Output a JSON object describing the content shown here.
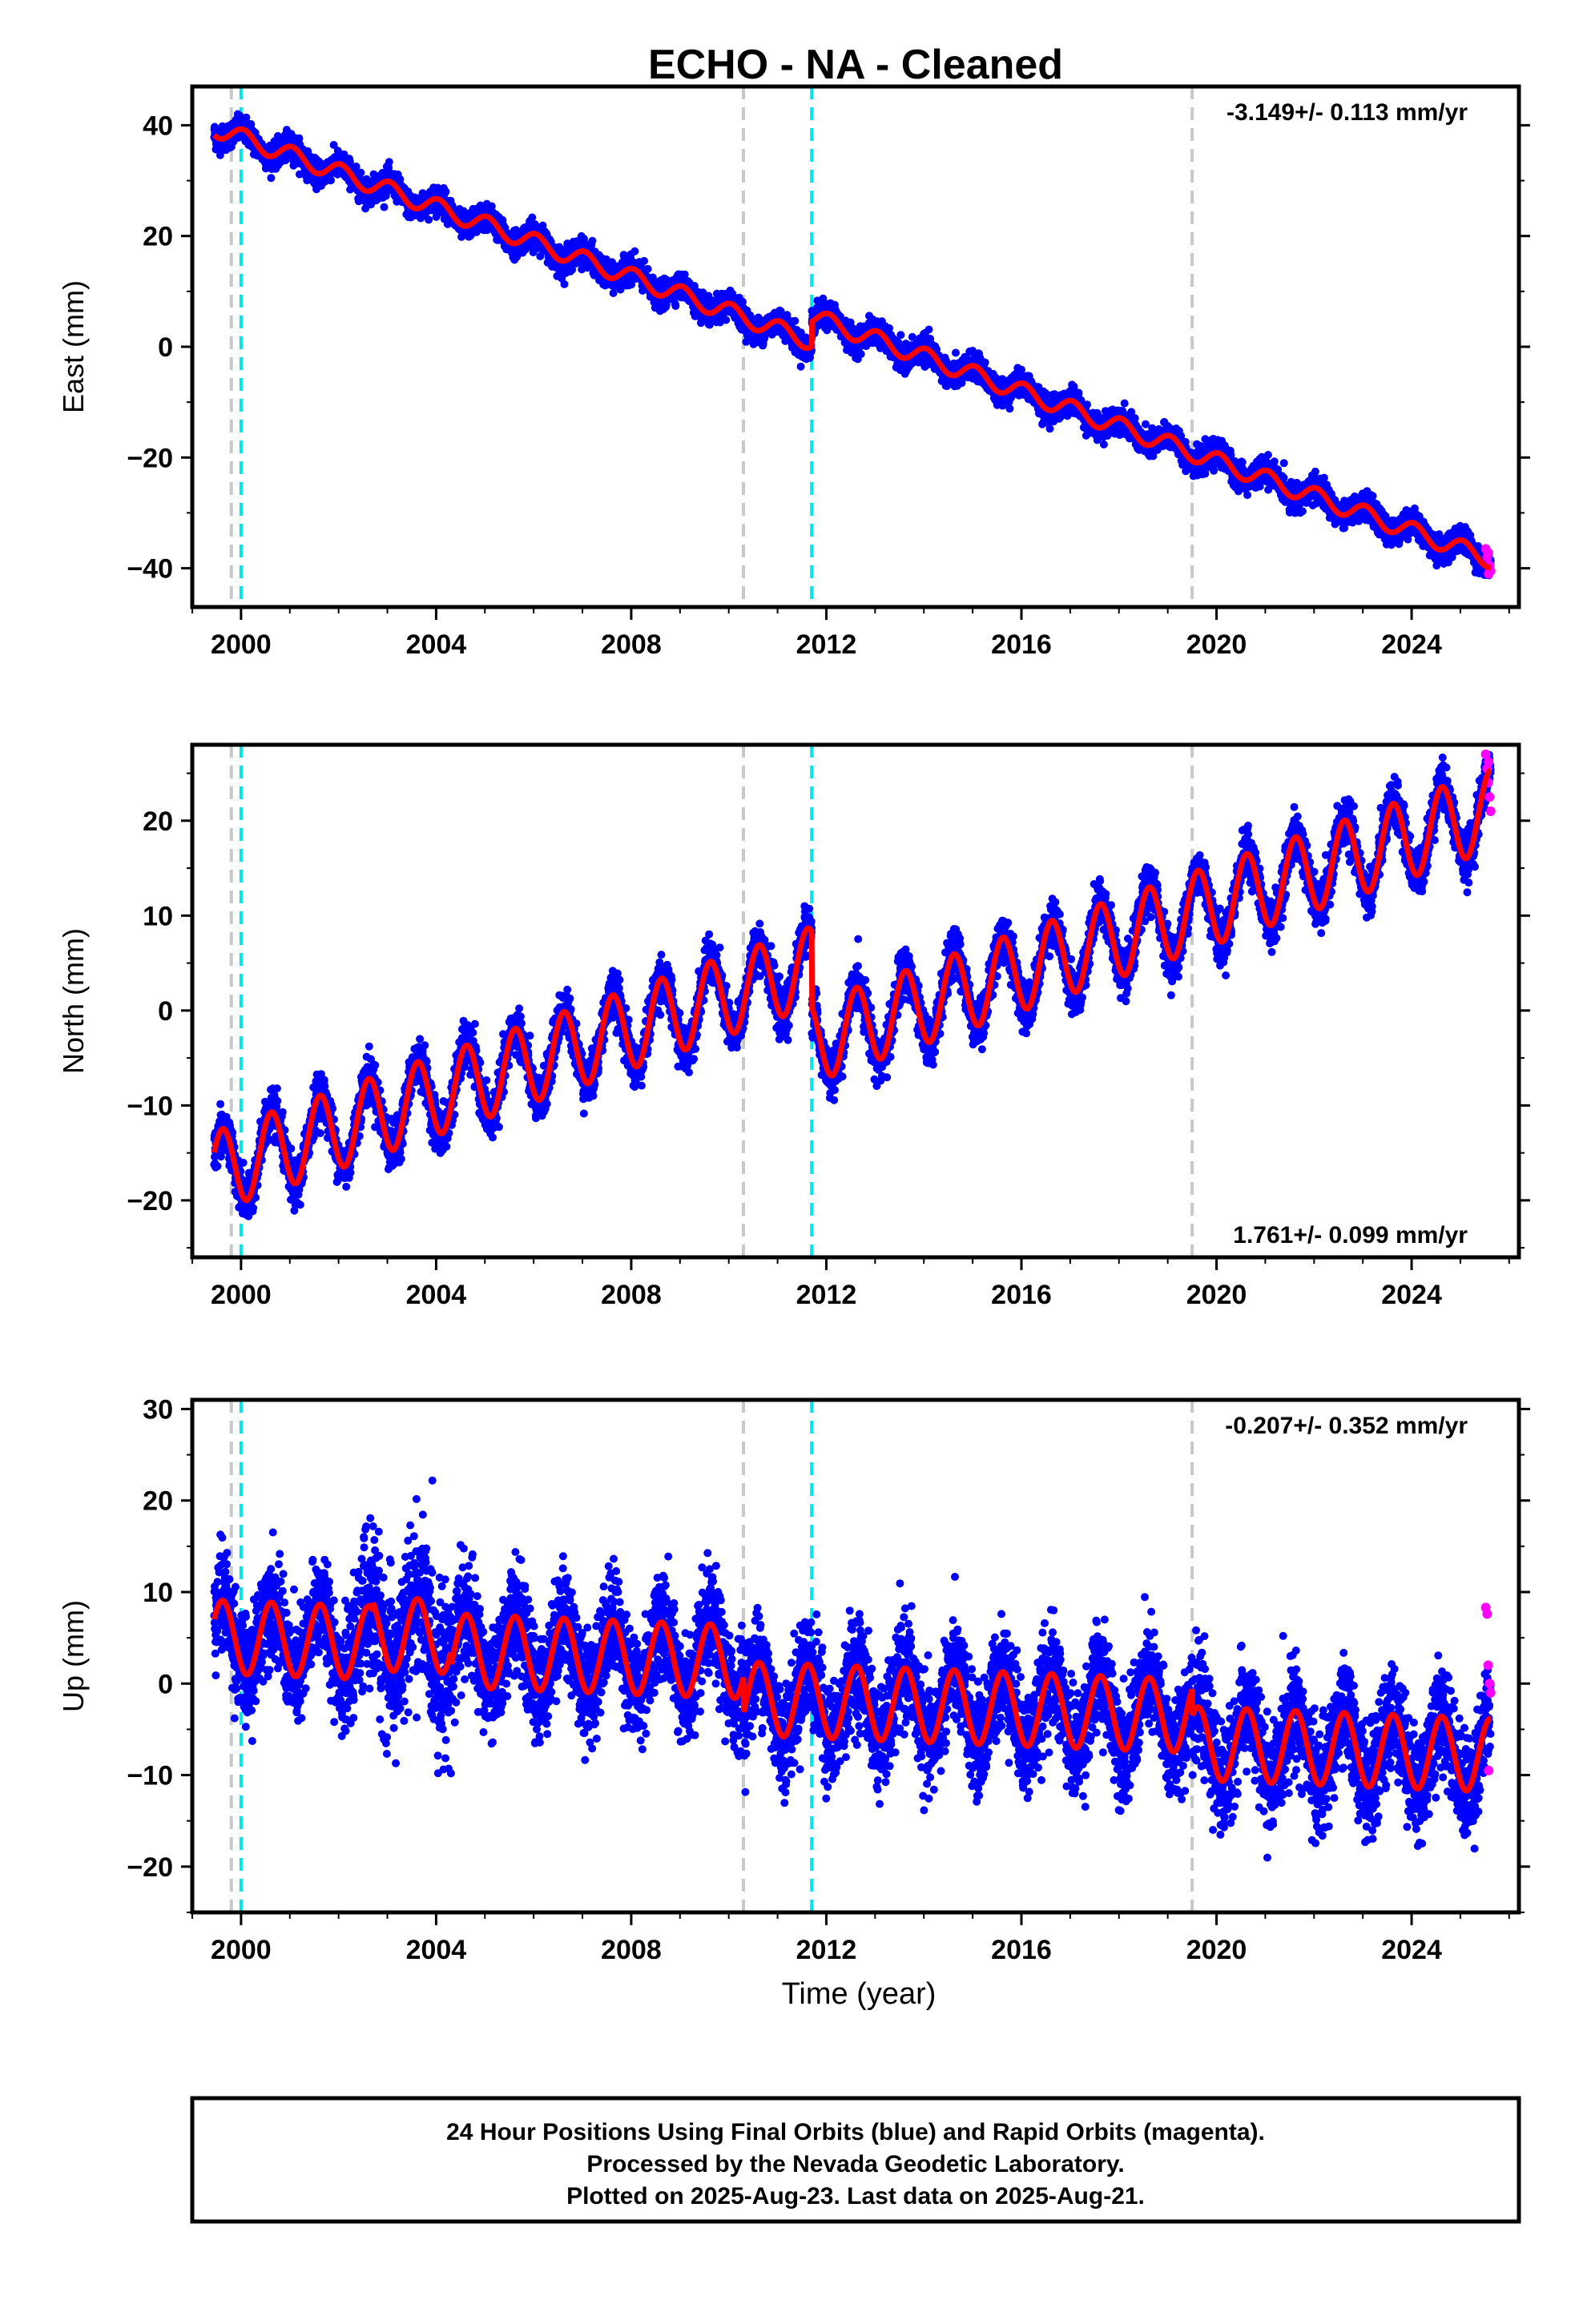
{
  "title": "ECHO  - NA - Cleaned",
  "x_axis_label": "Time (year)",
  "footer": [
    "24 Hour Positions Using Final Orbits (blue) and Rapid Orbits (magenta).",
    "Processed by the Nevada Geodetic Laboratory.",
    "Plotted on 2025-Aug-23. Last data on 2025-Aug-21."
  ],
  "colors": {
    "final_orbits": "#0000ff",
    "rapid_orbits": "#ff00ff",
    "model_fit": "#ff0000",
    "equipment_change": "#c8c8c8",
    "earthquake": "#00e5ee"
  },
  "chart_data": [
    {
      "type": "scatter",
      "ylabel": "East (mm)",
      "xlim": [
        1999.0,
        2026.2
      ],
      "ylim": [
        -47,
        47
      ],
      "xticks": [
        2000,
        2004,
        2008,
        2012,
        2016,
        2020,
        2024
      ],
      "yticks": [
        -40,
        -20,
        0,
        20,
        40
      ],
      "rate_text": "-3.149+/- 0.113 mm/yr",
      "rate_position": "top-right",
      "vertical_lines": [
        {
          "x": 1999.8,
          "kind": "equipment"
        },
        {
          "x": 2000.0,
          "kind": "earthquake"
        },
        {
          "x": 2010.3,
          "kind": "equipment"
        },
        {
          "x": 2011.7,
          "kind": "earthquake"
        },
        {
          "x": 2019.5,
          "kind": "equipment"
        }
      ],
      "model": {
        "start": 1999.45,
        "end": 2025.62,
        "intercept_at_2000": 37.8,
        "rate": -3.149,
        "annual_amplitude": 1.6,
        "annual_phase_year": 0.05,
        "offsets": [
          {
            "year": 2011.7,
            "jump": 4.5
          }
        ]
      },
      "noise_mm": 1.5,
      "rapid_points": [
        [
          2025.52,
          -36.5
        ],
        [
          2025.55,
          -38.0
        ],
        [
          2025.57,
          -37.2
        ],
        [
          2025.6,
          -39.5
        ],
        [
          2025.62,
          -40.5
        ],
        [
          2025.58,
          -41.0
        ]
      ]
    },
    {
      "type": "scatter",
      "ylabel": "North (mm)",
      "xlim": [
        1999.0,
        2026.2
      ],
      "ylim": [
        -26,
        28
      ],
      "xticks": [
        2000,
        2004,
        2008,
        2012,
        2016,
        2020,
        2024
      ],
      "yticks": [
        -20,
        -10,
        0,
        10,
        20
      ],
      "rate_text": "1.761+/- 0.099 mm/yr",
      "rate_position": "bottom-right",
      "vertical_lines": [
        {
          "x": 1999.8,
          "kind": "equipment"
        },
        {
          "x": 2000.0,
          "kind": "earthquake"
        },
        {
          "x": 2010.3,
          "kind": "equipment"
        },
        {
          "x": 2011.7,
          "kind": "earthquake"
        },
        {
          "x": 2019.5,
          "kind": "equipment"
        }
      ],
      "model": {
        "start": 1999.45,
        "end": 2025.62,
        "intercept_at_2000": -16.0,
        "rate": 1.761,
        "annual_amplitude": 4.2,
        "annual_phase_year": 0.62,
        "offsets": [
          {
            "year": 2011.7,
            "jump": -8.0
          }
        ]
      },
      "noise_mm": 1.6,
      "rapid_points": [
        [
          2025.52,
          27.0
        ],
        [
          2025.55,
          25.5
        ],
        [
          2025.57,
          24.0
        ],
        [
          2025.6,
          22.5
        ],
        [
          2025.62,
          21.0
        ],
        [
          2025.58,
          26.2
        ]
      ]
    },
    {
      "type": "scatter",
      "ylabel": "Up (mm)",
      "xlim": [
        1999.0,
        2026.2
      ],
      "ylim": [
        -25,
        31
      ],
      "xticks": [
        2000,
        2004,
        2008,
        2012,
        2016,
        2020,
        2024
      ],
      "yticks": [
        -20,
        -10,
        0,
        10,
        20,
        30
      ],
      "rate_text": "-0.207+/- 0.352 mm/yr",
      "rate_position": "top-right",
      "vertical_lines": [
        {
          "x": 1999.8,
          "kind": "equipment"
        },
        {
          "x": 2000.0,
          "kind": "earthquake"
        },
        {
          "x": 2010.3,
          "kind": "equipment"
        },
        {
          "x": 2011.7,
          "kind": "earthquake"
        },
        {
          "x": 2019.5,
          "kind": "equipment"
        }
      ],
      "model": {
        "start": 1999.45,
        "end": 2025.62,
        "intercept_at_2000": 5.0,
        "rate": -0.207,
        "annual_amplitude": 4.0,
        "annual_phase_year": 0.62,
        "offsets": [
          {
            "year": 2002.7,
            "jump": 1.0
          },
          {
            "year": 2004.3,
            "jump": -1.5
          },
          {
            "year": 2010.3,
            "jump": -4.0
          },
          {
            "year": 2019.5,
            "jump": -3.0
          }
        ]
      },
      "noise_mm": 3.8,
      "rapid_points": [
        [
          2025.52,
          8.3
        ],
        [
          2025.55,
          7.6
        ],
        [
          2025.57,
          2.0
        ],
        [
          2025.6,
          0.0
        ],
        [
          2025.62,
          -1.0
        ],
        [
          2025.58,
          -9.5
        ]
      ]
    }
  ]
}
